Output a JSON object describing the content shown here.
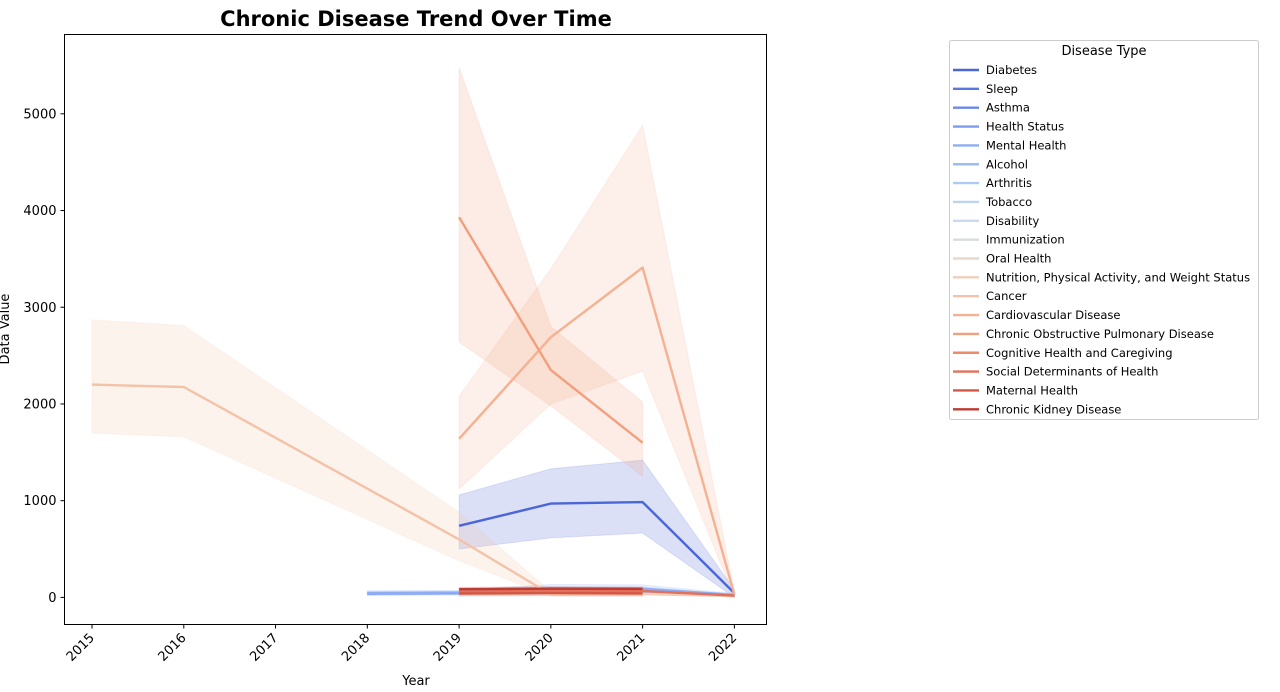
{
  "chart_data": {
    "type": "line",
    "title": "Chronic Disease Trend Over Time",
    "xlabel": "Year",
    "ylabel": "Data Value",
    "xlim": [
      2014.7,
      2022.35
    ],
    "ylim": [
      -280,
      5820
    ],
    "xticks": [
      "2015",
      "2016",
      "2017",
      "2018",
      "2019",
      "2020",
      "2021",
      "2022"
    ],
    "yticks": [
      "0",
      "1000",
      "2000",
      "3000",
      "4000",
      "5000"
    ],
    "grid": false,
    "legend": {
      "title": "Disease Type",
      "placement": "outside-right"
    },
    "series": [
      {
        "name": "Diabetes",
        "color": "#4b66d8",
        "points": [
          [
            2019,
            740
          ],
          [
            2020,
            970
          ],
          [
            2021,
            985
          ],
          [
            2022,
            45
          ]
        ],
        "band": [
          [
            2019,
            500,
            1060
          ],
          [
            2020,
            615,
            1330
          ],
          [
            2021,
            665,
            1420
          ],
          [
            2022,
            0,
            80
          ]
        ]
      },
      {
        "name": "Sleep",
        "color": "#5a78e0",
        "points": [
          [
            2019,
            35
          ],
          [
            2020,
            40
          ],
          [
            2021,
            38
          ]
        ],
        "band": [
          [
            2019,
            20,
            50
          ],
          [
            2020,
            25,
            55
          ],
          [
            2021,
            22,
            52
          ]
        ]
      },
      {
        "name": "Asthma",
        "color": "#6a8ae8",
        "points": [
          [
            2018,
            40
          ],
          [
            2019,
            45
          ],
          [
            2020,
            50
          ],
          [
            2021,
            48
          ],
          [
            2022,
            15
          ]
        ],
        "band": [
          [
            2018,
            20,
            60
          ],
          [
            2019,
            25,
            65
          ],
          [
            2020,
            30,
            70
          ],
          [
            2021,
            28,
            68
          ],
          [
            2022,
            5,
            25
          ]
        ]
      },
      {
        "name": "Health Status",
        "color": "#7b9cf0",
        "points": [
          [
            2019,
            60
          ],
          [
            2020,
            75
          ],
          [
            2021,
            70
          ],
          [
            2022,
            20
          ]
        ],
        "band": [
          [
            2019,
            30,
            90
          ],
          [
            2020,
            40,
            110
          ],
          [
            2021,
            35,
            105
          ],
          [
            2022,
            8,
            35
          ]
        ]
      },
      {
        "name": "Mental Health",
        "color": "#8daef4",
        "points": [
          [
            2018,
            45
          ],
          [
            2019,
            50
          ],
          [
            2020,
            95
          ],
          [
            2021,
            90
          ],
          [
            2022,
            25
          ]
        ],
        "band": [
          [
            2018,
            25,
            70
          ],
          [
            2019,
            30,
            75
          ],
          [
            2020,
            60,
            135
          ],
          [
            2021,
            55,
            130
          ],
          [
            2022,
            10,
            40
          ]
        ]
      },
      {
        "name": "Alcohol",
        "color": "#9dbcf6",
        "points": [
          [
            2019,
            30
          ],
          [
            2020,
            35
          ],
          [
            2021,
            33
          ]
        ],
        "band": [
          [
            2019,
            15,
            45
          ],
          [
            2020,
            18,
            52
          ],
          [
            2021,
            16,
            50
          ]
        ]
      },
      {
        "name": "Arthritis",
        "color": "#aec9f6",
        "points": [
          [
            2019,
            40
          ],
          [
            2020,
            45
          ],
          [
            2021,
            42
          ],
          [
            2022,
            20
          ]
        ],
        "band": [
          [
            2019,
            25,
            55
          ],
          [
            2020,
            28,
            62
          ],
          [
            2021,
            26,
            58
          ],
          [
            2022,
            10,
            30
          ]
        ]
      },
      {
        "name": "Tobacco",
        "color": "#bed3f2",
        "points": [
          [
            2019,
            25
          ],
          [
            2020,
            30
          ],
          [
            2021,
            28
          ]
        ],
        "band": [
          [
            2019,
            12,
            38
          ],
          [
            2020,
            15,
            45
          ],
          [
            2021,
            14,
            42
          ]
        ]
      },
      {
        "name": "Disability",
        "color": "#cdd9ec",
        "points": [
          [
            2019,
            30
          ],
          [
            2020,
            32
          ],
          [
            2021,
            30
          ]
        ],
        "band": [
          [
            2019,
            18,
            42
          ],
          [
            2020,
            20,
            44
          ],
          [
            2021,
            18,
            42
          ]
        ]
      },
      {
        "name": "Immunization",
        "color": "#dadce0",
        "points": [
          [
            2019,
            55
          ],
          [
            2020,
            60
          ],
          [
            2021,
            58
          ]
        ],
        "band": [
          [
            2019,
            35,
            75
          ],
          [
            2020,
            40,
            80
          ],
          [
            2021,
            38,
            78
          ]
        ]
      },
      {
        "name": "Oral Health",
        "color": "#e6d8cf",
        "points": [
          [
            2019,
            45
          ],
          [
            2020,
            48
          ],
          [
            2021,
            46
          ]
        ],
        "band": [
          [
            2019,
            30,
            60
          ],
          [
            2020,
            32,
            64
          ],
          [
            2021,
            30,
            62
          ]
        ]
      },
      {
        "name": "Nutrition, Physical Activity, and Weight Status",
        "color": "#efcfbc",
        "points": [
          [
            2019,
            35
          ],
          [
            2020,
            38
          ],
          [
            2021,
            36
          ],
          [
            2022,
            15
          ]
        ],
        "band": [
          [
            2019,
            22,
            48
          ],
          [
            2020,
            24,
            52
          ],
          [
            2021,
            22,
            50
          ],
          [
            2022,
            6,
            24
          ]
        ]
      },
      {
        "name": "Cancer",
        "color": "#f4c2a6",
        "points": [
          [
            2015,
            2200
          ],
          [
            2016,
            2175
          ],
          [
            2019,
            600
          ],
          [
            2020,
            30
          ],
          [
            2021,
            30
          ]
        ],
        "band": [
          [
            2015,
            1700,
            2870
          ],
          [
            2016,
            1660,
            2810
          ],
          [
            2019,
            380,
            880
          ],
          [
            2020,
            10,
            55
          ],
          [
            2021,
            10,
            55
          ]
        ]
      },
      {
        "name": "Cardiovascular Disease",
        "color": "#f5b191",
        "points": [
          [
            2019,
            1640
          ],
          [
            2020,
            2690
          ],
          [
            2021,
            3410
          ],
          [
            2022,
            30
          ]
        ],
        "band": [
          [
            2019,
            1120,
            2080
          ],
          [
            2020,
            2000,
            3400
          ],
          [
            2021,
            2340,
            4880
          ],
          [
            2022,
            0,
            60
          ]
        ]
      },
      {
        "name": "Chronic Obstructive Pulmonary Disease",
        "color": "#f29f7e",
        "points": [
          [
            2019,
            3930
          ],
          [
            2020,
            2350
          ],
          [
            2021,
            1600
          ]
        ],
        "band": [
          [
            2019,
            2640,
            5480
          ],
          [
            2020,
            1980,
            2800
          ],
          [
            2021,
            1250,
            2020
          ]
        ]
      },
      {
        "name": "Cognitive Health and Caregiving",
        "color": "#ec8a6a",
        "points": [
          [
            2019,
            50
          ],
          [
            2020,
            55
          ],
          [
            2021,
            52
          ]
        ],
        "band": [
          [
            2019,
            30,
            70
          ],
          [
            2020,
            35,
            75
          ],
          [
            2021,
            32,
            72
          ]
        ]
      },
      {
        "name": "Social Determinants of Health",
        "color": "#e2705a",
        "points": [
          [
            2019,
            60
          ],
          [
            2020,
            70
          ],
          [
            2021,
            65
          ],
          [
            2022,
            20
          ]
        ],
        "band": [
          [
            2019,
            35,
            90
          ],
          [
            2020,
            45,
            95
          ],
          [
            2021,
            40,
            90
          ],
          [
            2022,
            8,
            32
          ]
        ]
      },
      {
        "name": "Maternal Health",
        "color": "#d35744",
        "points": [
          [
            2019,
            40
          ],
          [
            2020,
            45
          ],
          [
            2021,
            42
          ]
        ],
        "band": [
          [
            2019,
            25,
            55
          ],
          [
            2020,
            28,
            62
          ],
          [
            2021,
            26,
            58
          ]
        ]
      },
      {
        "name": "Chronic Kidney Disease",
        "color": "#be3b33",
        "points": [
          [
            2019,
            85
          ],
          [
            2020,
            90
          ],
          [
            2021,
            88
          ]
        ],
        "band": [
          [
            2019,
            65,
            105
          ],
          [
            2020,
            70,
            110
          ],
          [
            2021,
            68,
            108
          ]
        ]
      }
    ]
  }
}
